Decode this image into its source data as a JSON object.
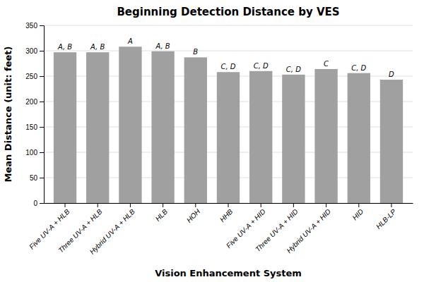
{
  "chart_data": {
    "type": "bar",
    "title": "Beginning Detection Distance by VES",
    "xlabel": "Vision Enhancement System",
    "ylabel": "Mean Distance (unit: feet)",
    "categories": [
      "Five UV-A + HLB",
      "Three UV-A + HLB",
      "Hybrid UV-A + HLB",
      "HLB",
      "HOH",
      "HHB",
      "Five UV-A + HID",
      "Three UV-A + HID",
      "Hybrid UV-A + HID",
      "HID",
      "HLB-LP"
    ],
    "values": [
      297,
      297,
      308,
      299,
      287,
      258,
      260,
      253,
      264,
      256,
      243
    ],
    "annotations": [
      "A, B",
      "A, B",
      "A",
      "A, B",
      "B",
      "C, D",
      "C, D",
      "C, D",
      "C",
      "C, D",
      "D"
    ],
    "color": "#a0a0a0",
    "ylim": [
      0,
      350
    ],
    "yticks": [
      0,
      50,
      100,
      150,
      200,
      250,
      300,
      350
    ],
    "grid": true
  }
}
